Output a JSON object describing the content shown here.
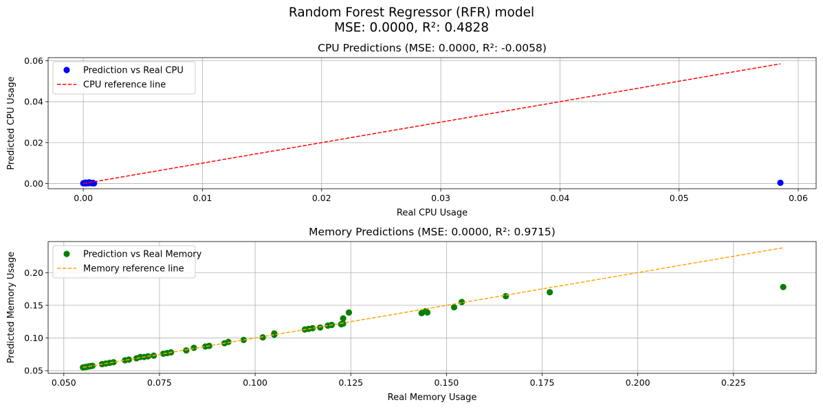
{
  "figure": {
    "title_line1": "Random Forest Regressor (RFR) model",
    "title_line2": "MSE: 0.0000, R²: 0.4828"
  },
  "chart_data": [
    {
      "type": "scatter",
      "title": "CPU Predictions (MSE: 0.0000, R²: -0.0058)",
      "xlabel": "Real CPU Usage",
      "ylabel": "Predicted CPU Usage",
      "xlim": [
        -0.00295,
        0.0615
      ],
      "ylim": [
        -0.0025,
        0.0615
      ],
      "xticks": [
        0.0,
        0.01,
        0.02,
        0.03,
        0.04,
        0.05,
        0.06
      ],
      "xtick_labels": [
        "0.00",
        "0.01",
        "0.02",
        "0.03",
        "0.04",
        "0.05",
        "0.06"
      ],
      "yticks": [
        0.0,
        0.02,
        0.04,
        0.06
      ],
      "ytick_labels": [
        "0.00",
        "0.02",
        "0.04",
        "0.06"
      ],
      "grid": true,
      "legend_position": "upper-left",
      "series": [
        {
          "name": "Prediction vs Real CPU",
          "kind": "scatter",
          "color": "#0000ff",
          "points": [
            [
              0.0,
              0.0002
            ],
            [
              0.0001,
              0.0003
            ],
            [
              0.0002,
              0.0001
            ],
            [
              0.0003,
              0.0004
            ],
            [
              0.0004,
              0.0002
            ],
            [
              0.0005,
              0.0006
            ],
            [
              0.0006,
              0.0003
            ],
            [
              0.0007,
              0.0002
            ],
            [
              0.0008,
              0.0004
            ],
            [
              0.0009,
              0.0001
            ],
            [
              0.0002,
              0.0005
            ],
            [
              0.0004,
              0.0003
            ],
            [
              0.0585,
              0.0004
            ]
          ]
        },
        {
          "name": "CPU reference line",
          "kind": "line",
          "style": "dashed",
          "color": "#ff0000",
          "points": [
            [
              0.0,
              0.0
            ],
            [
              0.0585,
              0.0585
            ]
          ]
        }
      ]
    },
    {
      "type": "scatter",
      "title": "Memory Predictions (MSE: 0.0000, R²: 0.9715)",
      "xlabel": "Real Memory Usage",
      "ylabel": "Predicted Memory Usage",
      "xlim": [
        0.0459,
        0.2466
      ],
      "ylim": [
        0.046,
        0.2475
      ],
      "xticks": [
        0.05,
        0.075,
        0.1,
        0.125,
        0.15,
        0.175,
        0.2,
        0.225
      ],
      "xtick_labels": [
        "0.050",
        "0.075",
        "0.100",
        "0.125",
        "0.150",
        "0.175",
        "0.200",
        "0.225"
      ],
      "yticks": [
        0.05,
        0.1,
        0.15,
        0.2
      ],
      "ytick_labels": [
        "0.05",
        "0.10",
        "0.15",
        "0.20"
      ],
      "grid": true,
      "legend_position": "upper-left",
      "series": [
        {
          "name": "Prediction vs Real Memory",
          "kind": "scatter",
          "color": "#008000",
          "points": [
            [
              0.055,
              0.055
            ],
            [
              0.0555,
              0.0555
            ],
            [
              0.056,
              0.056
            ],
            [
              0.0565,
              0.0565
            ],
            [
              0.057,
              0.057
            ],
            [
              0.0575,
              0.0575
            ],
            [
              0.06,
              0.06
            ],
            [
              0.061,
              0.061
            ],
            [
              0.062,
              0.062
            ],
            [
              0.063,
              0.063
            ],
            [
              0.066,
              0.066
            ],
            [
              0.067,
              0.067
            ],
            [
              0.069,
              0.069
            ],
            [
              0.07,
              0.071
            ],
            [
              0.071,
              0.071
            ],
            [
              0.072,
              0.072
            ],
            [
              0.0735,
              0.073
            ],
            [
              0.076,
              0.076
            ],
            [
              0.077,
              0.077
            ],
            [
              0.078,
              0.078
            ],
            [
              0.082,
              0.081
            ],
            [
              0.084,
              0.085
            ],
            [
              0.087,
              0.087
            ],
            [
              0.088,
              0.088
            ],
            [
              0.092,
              0.092
            ],
            [
              0.093,
              0.094
            ],
            [
              0.097,
              0.097
            ],
            [
              0.102,
              0.101
            ],
            [
              0.105,
              0.105
            ],
            [
              0.105,
              0.107
            ],
            [
              0.113,
              0.113
            ],
            [
              0.114,
              0.114
            ],
            [
              0.115,
              0.115
            ],
            [
              0.117,
              0.116
            ],
            [
              0.119,
              0.119
            ],
            [
              0.12,
              0.12
            ],
            [
              0.1225,
              0.121
            ],
            [
              0.123,
              0.122
            ],
            [
              0.123,
              0.13
            ],
            [
              0.1245,
              0.139
            ],
            [
              0.1435,
              0.138
            ],
            [
              0.145,
              0.139
            ],
            [
              0.1445,
              0.141
            ],
            [
              0.152,
              0.147
            ],
            [
              0.154,
              0.155
            ],
            [
              0.1655,
              0.164
            ],
            [
              0.177,
              0.17
            ],
            [
              0.238,
              0.178
            ]
          ]
        },
        {
          "name": "Memory reference line",
          "kind": "line",
          "style": "dashed",
          "color": "#ffa500",
          "points": [
            [
              0.055,
              0.055
            ],
            [
              0.238,
              0.238
            ]
          ]
        }
      ]
    }
  ]
}
